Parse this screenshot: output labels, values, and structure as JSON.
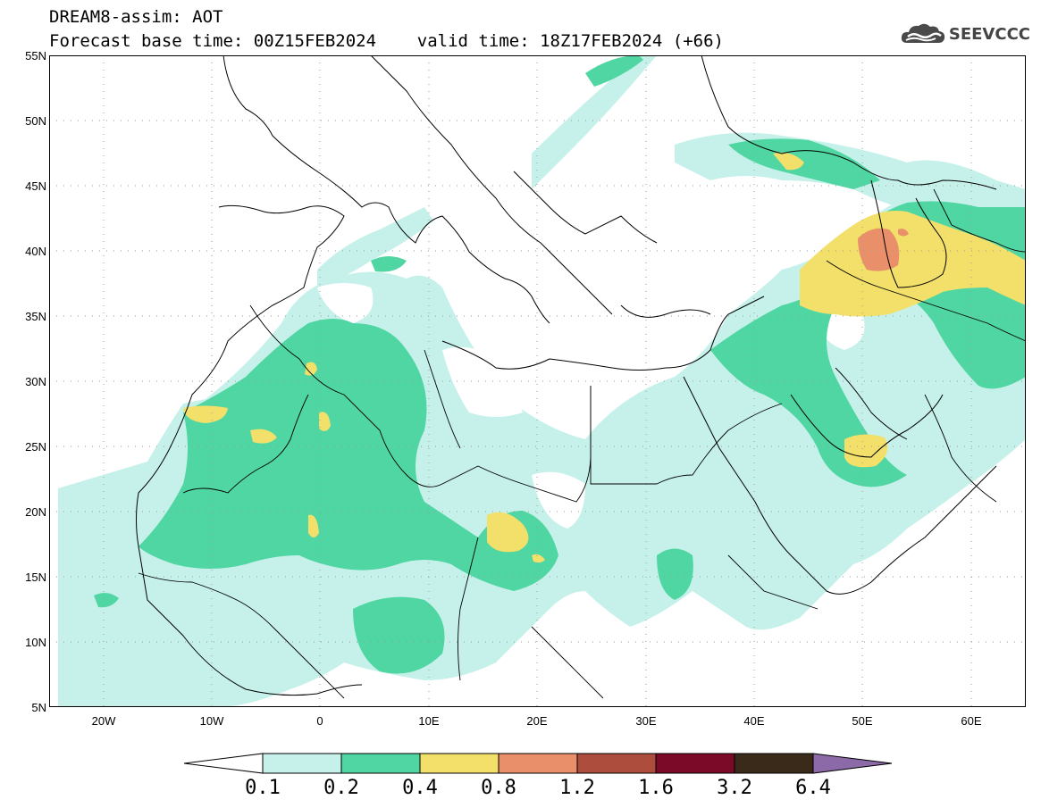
{
  "header": {
    "line1": "DREAM8-assim: AOT",
    "line2": "Forecast base time: 00Z15FEB2024    valid time: 18Z17FEB2024 (+66)"
  },
  "logo": {
    "text": "SEEVCCC",
    "icon": "cloud-icon"
  },
  "map": {
    "lon_range": [
      -25,
      65
    ],
    "lat_range": [
      5,
      55
    ],
    "lat_labels": [
      "55N",
      "50N",
      "45N",
      "40N",
      "35N",
      "30N",
      "25N",
      "20N",
      "15N",
      "10N",
      "5N"
    ],
    "lon_labels": [
      "20W",
      "10W",
      "0",
      "10E",
      "20E",
      "30E",
      "40E",
      "50E",
      "60E"
    ],
    "grid": true
  },
  "colorbar": {
    "labels": [
      "0.1",
      "0.2",
      "0.4",
      "0.8",
      "1.2",
      "1.6",
      "3.2",
      "6.4"
    ],
    "colors": [
      "#c6f1ea",
      "#50d6a2",
      "#f2e06a",
      "#e9906a",
      "#ac4d3e",
      "#7a0a28",
      "#3a2a1a",
      "#8c6aa8"
    ]
  }
}
